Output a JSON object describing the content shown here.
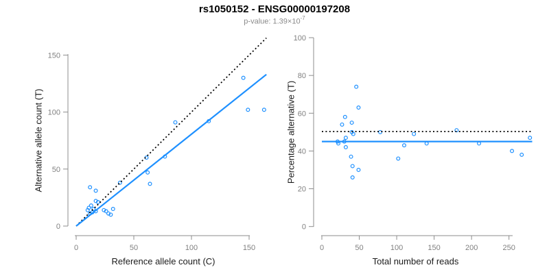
{
  "header": {
    "title": "rs1050152 - ENSG00000197208",
    "subtitle_prefix": "p-value: 1.39×10",
    "subtitle_exponent": "-7"
  },
  "colors": {
    "accent_blue": "#1e90ff",
    "dotted_black": "#000000",
    "axis_line": "#8c8c8c",
    "tick_label": "#808080",
    "axis_title": "#1a1a1a",
    "subtitle_gray": "#8a8a8a",
    "background": "#ffffff"
  },
  "chart_data": [
    {
      "type": "scatter",
      "name": "allele-counts-scatter",
      "xlabel": "Reference allele count (C)",
      "ylabel": "Alternative allele count (T)",
      "xlim": [
        0,
        165
      ],
      "ylim": [
        0,
        165
      ],
      "xticks": [
        0,
        50,
        100,
        150
      ],
      "yticks": [
        0,
        50,
        100,
        150
      ],
      "grid": false,
      "point_color": "#1e90ff",
      "points": [
        [
          10,
          14
        ],
        [
          11,
          16
        ],
        [
          12,
          11
        ],
        [
          14,
          12
        ],
        [
          12,
          34
        ],
        [
          13,
          18
        ],
        [
          15,
          15
        ],
        [
          17,
          13
        ],
        [
          17,
          22
        ],
        [
          17,
          31
        ],
        [
          19,
          21
        ],
        [
          24,
          14
        ],
        [
          26,
          13
        ],
        [
          28,
          11
        ],
        [
          30,
          10
        ],
        [
          32,
          15
        ],
        [
          38,
          38
        ],
        [
          61,
          60
        ],
        [
          62,
          47
        ],
        [
          64,
          37
        ],
        [
          77,
          61
        ],
        [
          86,
          91
        ],
        [
          115,
          92
        ],
        [
          145,
          130
        ],
        [
          149,
          102
        ],
        [
          163,
          102
        ]
      ],
      "lines": [
        {
          "name": "identity-line",
          "style": "dotted",
          "color": "#000000",
          "from": [
            0,
            0
          ],
          "to": [
            165,
            165
          ]
        },
        {
          "name": "regression-line",
          "style": "solid",
          "color": "#1e90ff",
          "from": [
            0,
            0
          ],
          "to": [
            165,
            133
          ]
        }
      ]
    },
    {
      "type": "scatter",
      "name": "percentage-vs-coverage-scatter",
      "xlabel": "Total number of reads",
      "ylabel": "Percentage alternative (T)",
      "xlim": [
        0,
        283
      ],
      "ylim": [
        0,
        100
      ],
      "xticks": [
        0,
        50,
        100,
        150,
        200,
        250
      ],
      "yticks": [
        0,
        20,
        40,
        60,
        80,
        100
      ],
      "grid": false,
      "point_color": "#1e90ff",
      "points": [
        [
          46,
          74
        ],
        [
          49,
          63
        ],
        [
          31,
          58
        ],
        [
          40,
          55
        ],
        [
          27,
          54
        ],
        [
          40,
          50
        ],
        [
          42,
          49
        ],
        [
          78,
          50
        ],
        [
          123,
          49
        ],
        [
          180,
          51
        ],
        [
          21,
          45
        ],
        [
          30,
          45
        ],
        [
          32,
          47
        ],
        [
          22,
          44
        ],
        [
          32,
          42
        ],
        [
          39,
          37
        ],
        [
          102,
          36
        ],
        [
          110,
          43
        ],
        [
          140,
          44
        ],
        [
          210,
          44
        ],
        [
          254,
          40
        ],
        [
          267,
          38
        ],
        [
          278,
          47
        ],
        [
          41,
          32
        ],
        [
          49,
          30
        ],
        [
          41,
          26
        ]
      ],
      "lines": [
        {
          "name": "expected-50pct-line",
          "style": "dotted",
          "color": "#000000",
          "from": [
            0,
            50.3
          ],
          "to": [
            281,
            50.3
          ]
        },
        {
          "name": "mean-percentage-line",
          "style": "solid",
          "color": "#1e90ff",
          "from": [
            0,
            45
          ],
          "to": [
            281,
            45
          ]
        }
      ]
    }
  ]
}
